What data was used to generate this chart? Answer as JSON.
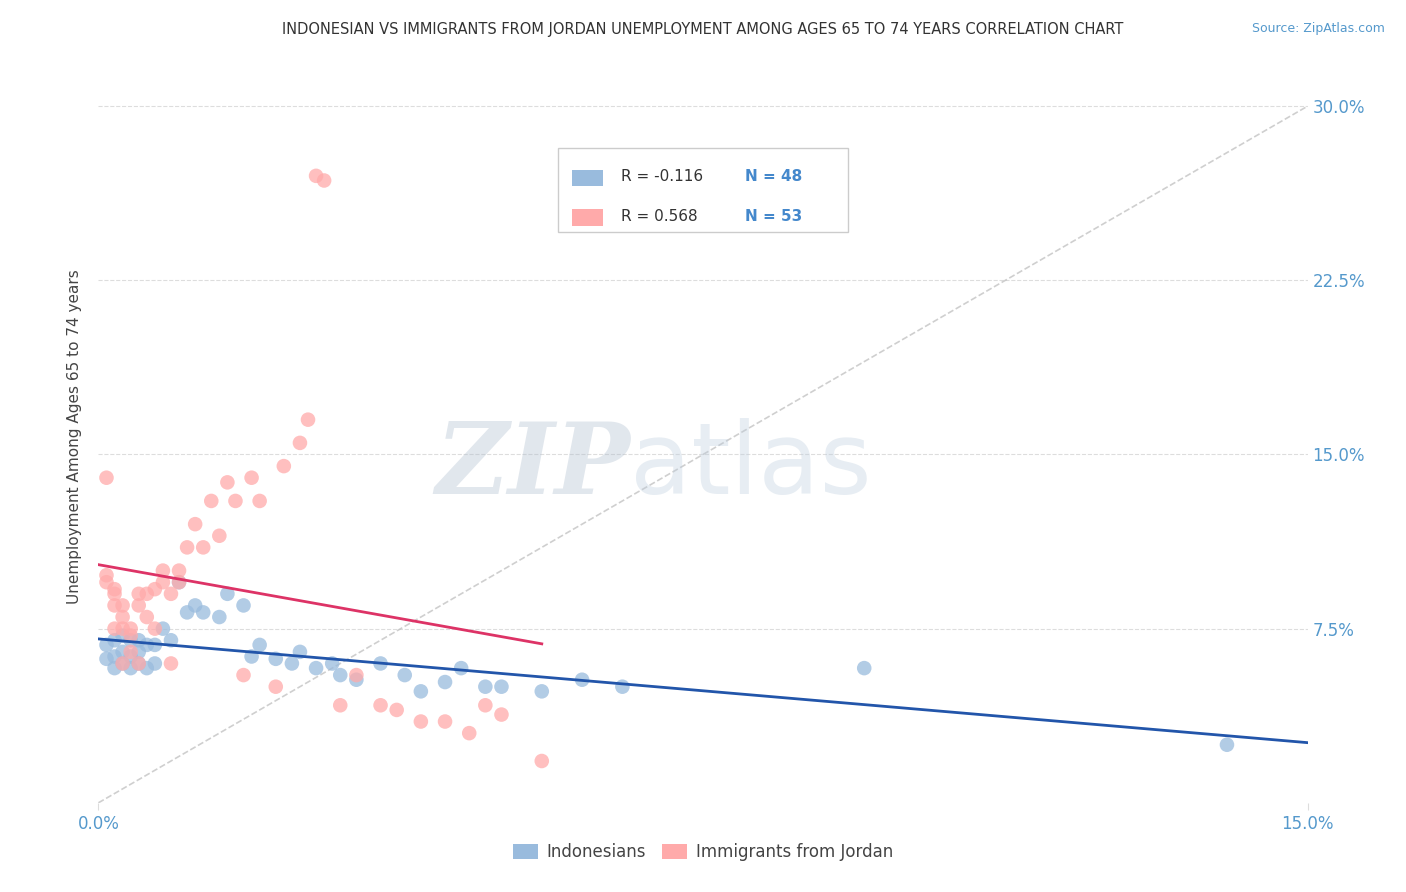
{
  "title": "INDONESIAN VS IMMIGRANTS FROM JORDAN UNEMPLOYMENT AMONG AGES 65 TO 74 YEARS CORRELATION CHART",
  "source": "Source: ZipAtlas.com",
  "ylabel_label": "Unemployment Among Ages 65 to 74 years",
  "legend_r1": "R = -0.116",
  "legend_n1": "N = 48",
  "legend_r2": "R = 0.568",
  "legend_n2": "N = 53",
  "legend_label1": "Indonesians",
  "legend_label2": "Immigrants from Jordan",
  "blue_color": "#99BBDD",
  "pink_color": "#FFAAAA",
  "blue_line_color": "#2255AA",
  "pink_line_color": "#DD3366",
  "ref_line_color": "#BBBBBB",
  "watermark": "ZIPatlas",
  "watermark_zip_color": "#AABBCC",
  "watermark_atlas_color": "#BBCCDD",
  "xmin": 0.0,
  "xmax": 0.15,
  "ymin": 0.0,
  "ymax": 0.315,
  "y_ticks": [
    0.075,
    0.15,
    0.225,
    0.3
  ],
  "y_tick_labels": [
    "7.5%",
    "15.0%",
    "22.5%",
    "30.0%"
  ],
  "x_ticks": [
    0.0,
    0.15
  ],
  "x_tick_labels": [
    "0.0%",
    "15.0%"
  ],
  "indonesian_x": [
    0.001,
    0.001,
    0.002,
    0.002,
    0.002,
    0.003,
    0.003,
    0.003,
    0.004,
    0.004,
    0.004,
    0.005,
    0.005,
    0.005,
    0.006,
    0.006,
    0.007,
    0.007,
    0.008,
    0.009,
    0.01,
    0.011,
    0.012,
    0.013,
    0.015,
    0.016,
    0.018,
    0.019,
    0.02,
    0.022,
    0.024,
    0.025,
    0.027,
    0.029,
    0.03,
    0.032,
    0.035,
    0.038,
    0.04,
    0.043,
    0.045,
    0.048,
    0.05,
    0.055,
    0.06,
    0.065,
    0.095,
    0.14
  ],
  "indonesian_y": [
    0.062,
    0.068,
    0.058,
    0.063,
    0.07,
    0.06,
    0.065,
    0.072,
    0.058,
    0.063,
    0.07,
    0.06,
    0.065,
    0.07,
    0.058,
    0.068,
    0.06,
    0.068,
    0.075,
    0.07,
    0.095,
    0.082,
    0.085,
    0.082,
    0.08,
    0.09,
    0.085,
    0.063,
    0.068,
    0.062,
    0.06,
    0.065,
    0.058,
    0.06,
    0.055,
    0.053,
    0.06,
    0.055,
    0.048,
    0.052,
    0.058,
    0.05,
    0.05,
    0.048,
    0.053,
    0.05,
    0.058,
    0.025
  ],
  "jordan_x": [
    0.001,
    0.001,
    0.001,
    0.002,
    0.002,
    0.002,
    0.002,
    0.003,
    0.003,
    0.003,
    0.003,
    0.004,
    0.004,
    0.004,
    0.005,
    0.005,
    0.005,
    0.006,
    0.006,
    0.007,
    0.007,
    0.008,
    0.008,
    0.009,
    0.009,
    0.01,
    0.01,
    0.011,
    0.012,
    0.013,
    0.014,
    0.015,
    0.016,
    0.017,
    0.018,
    0.019,
    0.02,
    0.022,
    0.023,
    0.025,
    0.026,
    0.027,
    0.028,
    0.03,
    0.032,
    0.035,
    0.037,
    0.04,
    0.043,
    0.046,
    0.048,
    0.05,
    0.055
  ],
  "jordan_y": [
    0.14,
    0.095,
    0.098,
    0.09,
    0.092,
    0.085,
    0.075,
    0.08,
    0.075,
    0.085,
    0.06,
    0.075,
    0.072,
    0.065,
    0.085,
    0.09,
    0.06,
    0.08,
    0.09,
    0.075,
    0.092,
    0.095,
    0.1,
    0.09,
    0.06,
    0.095,
    0.1,
    0.11,
    0.12,
    0.11,
    0.13,
    0.115,
    0.138,
    0.13,
    0.055,
    0.14,
    0.13,
    0.05,
    0.145,
    0.155,
    0.165,
    0.27,
    0.268,
    0.042,
    0.055,
    0.042,
    0.04,
    0.035,
    0.035,
    0.03,
    0.042,
    0.038,
    0.018
  ]
}
